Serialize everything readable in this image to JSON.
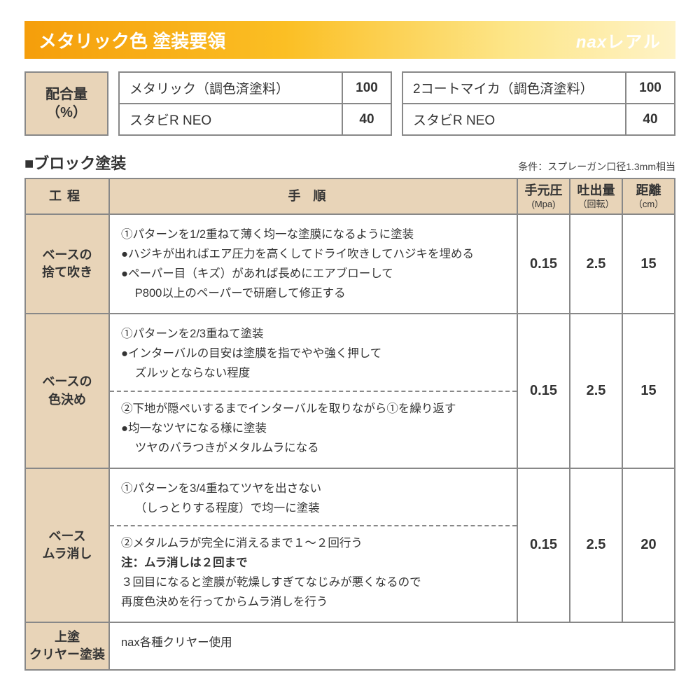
{
  "header": {
    "title": "メタリック色 塗装要領",
    "brand_prefix": "nax",
    "brand_main": "レアル"
  },
  "mix": {
    "label_line1": "配合量",
    "label_line2": "（%）",
    "left": [
      {
        "name": "メタリック（調色済塗料）",
        "value": "100"
      },
      {
        "name": "スタビR NEO",
        "value": "40"
      }
    ],
    "right": [
      {
        "name": "2コートマイカ（調色済塗料）",
        "value": "100"
      },
      {
        "name": "スタビR NEO",
        "value": "40"
      }
    ]
  },
  "section": {
    "title": "■ブロック塗装",
    "condition": "条件：スプレーガン口径1.3mm相当"
  },
  "columns": {
    "process": "工程",
    "procedure": "手順",
    "pressure": "手元圧",
    "pressure_unit": "(Mpa)",
    "discharge": "吐出量",
    "discharge_unit": "（回転）",
    "distance": "距離",
    "distance_unit": "（cm）"
  },
  "rows": [
    {
      "process_l1": "ベースの",
      "process_l2": "捨て吹き",
      "lines": [
        "①パターンを1/2重ねて薄く均一な塗膜になるように塗装",
        "●ハジキが出ればエア圧力を高くしてドライ吹きしてハジキを埋める",
        "●ペーパー目（キズ）があれば長めにエアブローして",
        "P800以上のペーパーで研磨して修正する"
      ],
      "pressure": "0.15",
      "discharge": "2.5",
      "distance": "15"
    },
    {
      "process_l1": "ベースの",
      "process_l2": "色決め",
      "lines_a": [
        "①パターンを2/3重ねて塗装",
        "●インターバルの目安は塗膜を指でやや強く押して",
        "ズルッとならない程度"
      ],
      "lines_b": [
        "②下地が隠ぺいするまでインターバルを取りながら①を繰り返す",
        "●均一なツヤになる様に塗装",
        "ツヤのバラつきがメタルムラになる"
      ],
      "pressure": "0.15",
      "discharge": "2.5",
      "distance": "15"
    },
    {
      "process_l1": "ベース",
      "process_l2": "ムラ消し",
      "lines_a": [
        "①パターンを3/4重ねてツヤを出さない",
        "（しっとりする程度）で均一に塗装"
      ],
      "lines_b_lead": "②メタルムラが完全に消えるまで１～２回行う",
      "lines_b_note": "注：ムラ消しは２回まで",
      "lines_b_rest": [
        "３回目になると塗膜が乾燥しすぎてなじみが悪くなるので",
        "再度色決めを行ってからムラ消しを行う"
      ],
      "pressure": "0.15",
      "discharge": "2.5",
      "distance": "20"
    },
    {
      "process_l1": "上塗",
      "process_l2": "クリヤー塗装",
      "lines": [
        "nax各種クリヤー使用"
      ]
    }
  ],
  "style": {
    "header_gradient_from": "#f59e0b",
    "header_gradient_to": "#fef3c7",
    "cell_header_bg": "#e8d4b8",
    "border_color": "#888888",
    "text_color": "#333333"
  }
}
